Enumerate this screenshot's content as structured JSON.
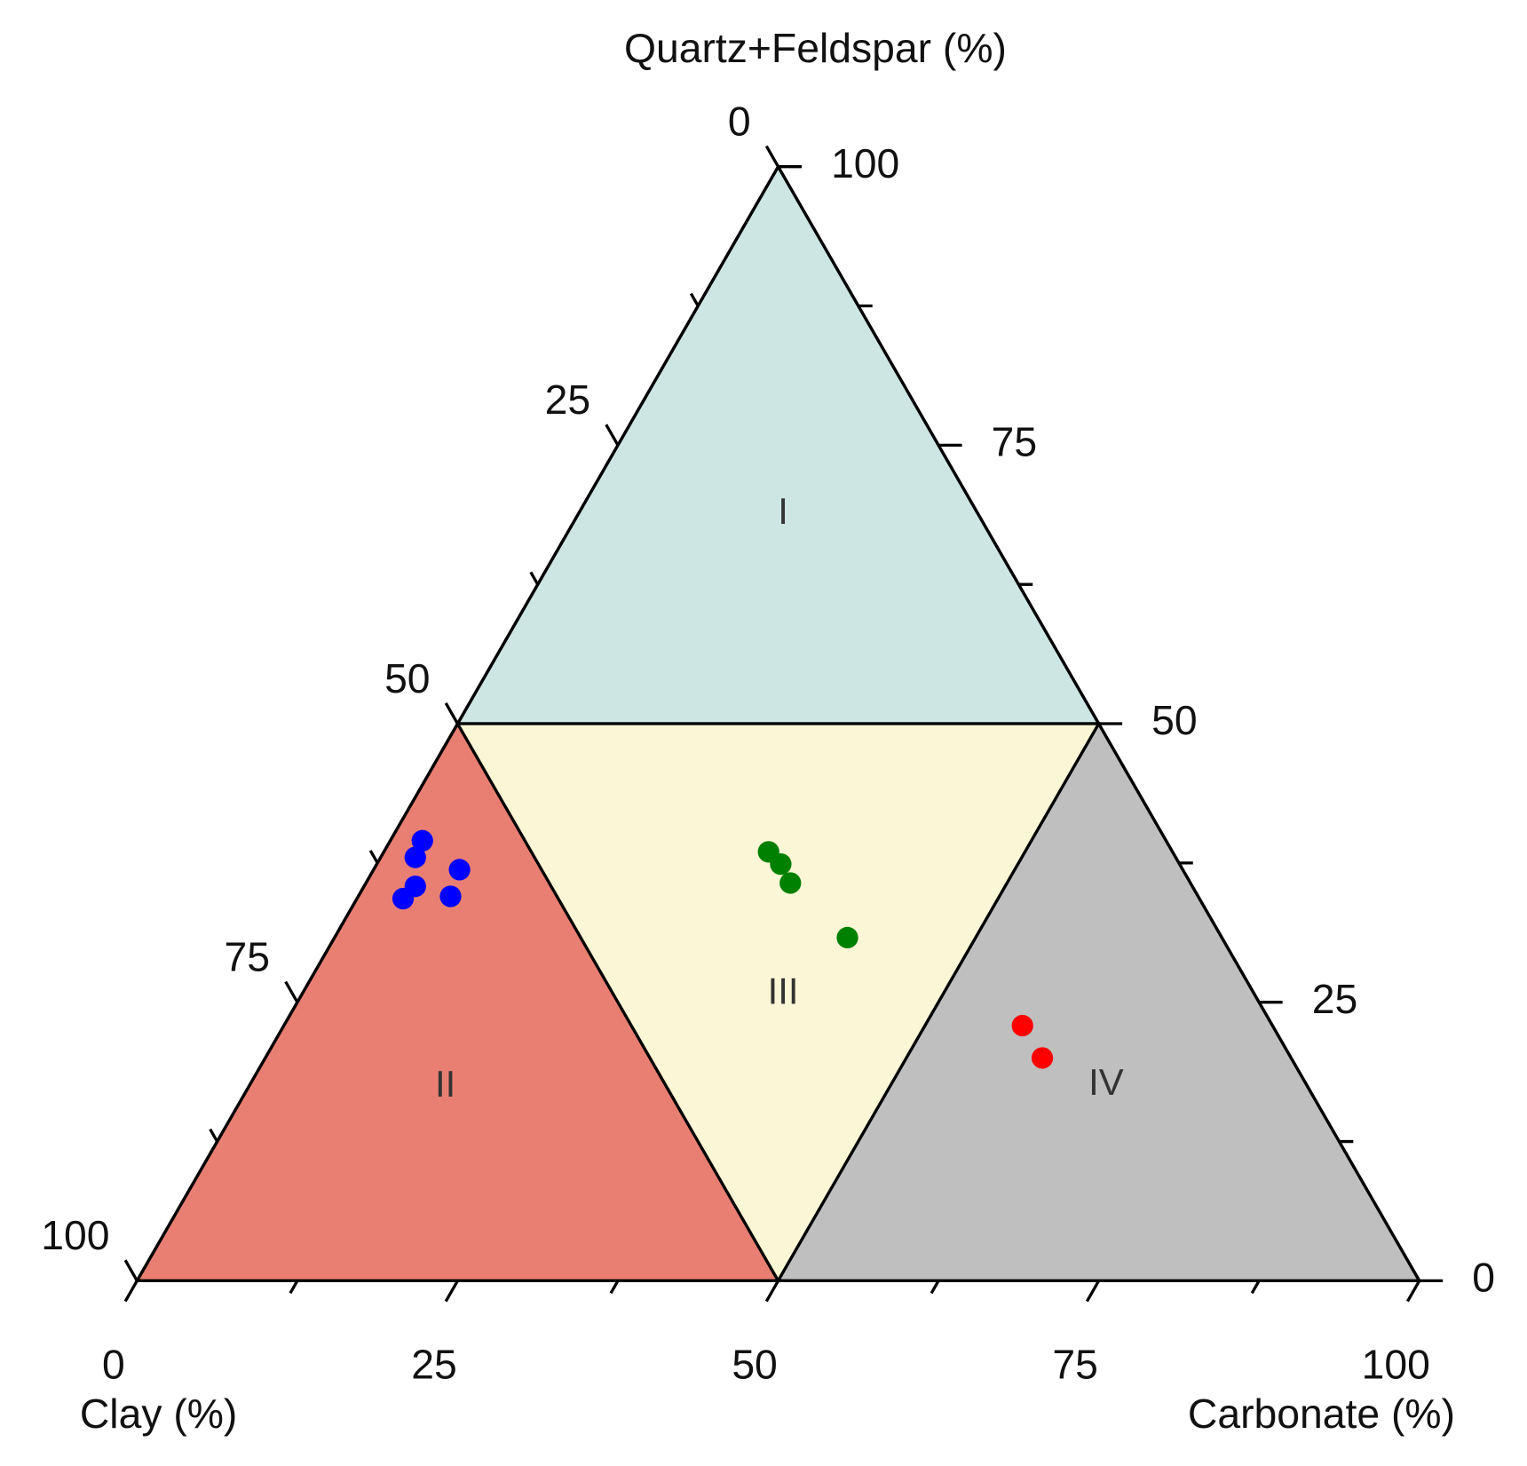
{
  "chart_data": {
    "type": "ternary",
    "title": "Quartz+Feldspar (%)",
    "axes": {
      "clay": {
        "title": "Clay (%)",
        "ticks": [
          0,
          25,
          50,
          75,
          100
        ],
        "minor_ticks": [
          12.5,
          37.5,
          62.5,
          87.5
        ]
      },
      "quartz_feldspar": {
        "title": "Quartz+Feldspar (%)",
        "ticks": [
          0,
          25,
          50,
          75,
          100
        ],
        "minor_ticks": [
          12.5,
          37.5,
          62.5,
          87.5
        ]
      },
      "carbonate": {
        "title": "Carbonate (%)",
        "ticks": [
          0,
          25,
          50,
          75,
          100
        ],
        "minor_ticks": [
          12.5,
          37.5,
          62.5,
          87.5
        ]
      }
    },
    "regions": [
      {
        "label": "I",
        "color": "#cde6e4"
      },
      {
        "label": "II",
        "color": "#e97f73"
      },
      {
        "label": "III",
        "color": "#fbf6d5"
      },
      {
        "label": "IV",
        "color": "#bfbfbf"
      }
    ],
    "series": [
      {
        "color": "#0000ff",
        "clay": [
          58.0,
          59.3,
          56.4,
          60.6,
          62.1,
          58.3
        ],
        "quartz_feldspar": [
          39.5,
          38.0,
          36.9,
          35.4,
          34.3,
          34.5
        ],
        "carbonate": [
          2.5,
          2.7,
          6.7,
          4.0,
          3.6,
          7.2
        ]
      },
      {
        "color": "#008000",
        "clay": [
          31.5,
          31.1,
          31.2,
          29.2
        ],
        "quartz_feldspar": [
          38.5,
          37.4,
          35.7,
          30.8
        ],
        "carbonate": [
          30.0,
          31.5,
          33.1,
          40.0
        ]
      },
      {
        "color": "#ff0000",
        "clay": [
          19.5,
          19.4
        ],
        "quartz_feldspar": [
          22.9,
          20.0
        ],
        "carbonate": [
          57.6,
          60.6
        ]
      }
    ]
  }
}
